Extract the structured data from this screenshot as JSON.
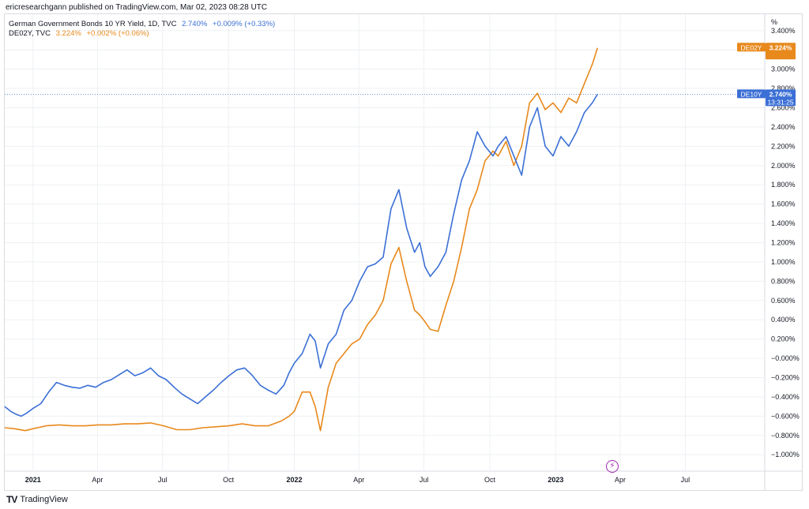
{
  "header": {
    "published": "ericresearchgann published on TradingView.com, Mar 02, 2023 08:28 UTC"
  },
  "legend": {
    "line1": {
      "name": "German Government Bonds 10 YR Yield, 1D, TVC",
      "value": "2.740%",
      "change": "+0.009% (+0.33%)"
    },
    "line2": {
      "name": "DE02Y, TVC",
      "value": "3.224%",
      "change": "+0.002% (+0.06%)"
    }
  },
  "axis_unit": "%",
  "labels": {
    "de02y": {
      "ticker": "DE02Y",
      "value": "3.224%"
    },
    "de10y": {
      "ticker": "DE10Y",
      "value": "2.740%",
      "countdown": "13:31:25"
    }
  },
  "footer": {
    "logo": "TV",
    "brand": "TradingView"
  },
  "colors": {
    "de10y": "#3b6fd6",
    "de02y": "#e8891c",
    "grid": "#eef0f3",
    "text": "#131722"
  },
  "chart_data": {
    "type": "line",
    "title": "German Government Bonds 10 YR Yield vs DE02Y",
    "xlabel": "",
    "ylabel": "%",
    "ylim": [
      -1.17,
      3.57
    ],
    "xlim": [
      2020.892,
      2023.8
    ],
    "grid": true,
    "x_ticks": [
      {
        "label": "2021",
        "x": 2021.0,
        "bold": true
      },
      {
        "label": "Apr",
        "x": 2021.247
      },
      {
        "label": "Jul",
        "x": 2021.496
      },
      {
        "label": "Oct",
        "x": 2021.748
      },
      {
        "label": "2022",
        "x": 2022.0,
        "bold": true
      },
      {
        "label": "Apr",
        "x": 2022.247
      },
      {
        "label": "Jul",
        "x": 2022.496
      },
      {
        "label": "Oct",
        "x": 2022.748
      },
      {
        "label": "2023",
        "x": 2023.0,
        "bold": true
      },
      {
        "label": "Apr",
        "x": 2023.247
      },
      {
        "label": "Jul",
        "x": 2023.496
      }
    ],
    "y_ticks": [
      {
        "value": 3.4,
        "label": "3.400%"
      },
      {
        "value": 3.2,
        "label": "3.200%"
      },
      {
        "value": 3.0,
        "label": "3.000%"
      },
      {
        "value": 2.8,
        "label": "2.800%"
      },
      {
        "value": 2.6,
        "label": "2.600%"
      },
      {
        "value": 2.4,
        "label": "2.400%"
      },
      {
        "value": 2.2,
        "label": "2.200%"
      },
      {
        "value": 2.0,
        "label": "2.000%"
      },
      {
        "value": 1.8,
        "label": "1.800%"
      },
      {
        "value": 1.6,
        "label": "1.600%"
      },
      {
        "value": 1.4,
        "label": "1.400%"
      },
      {
        "value": 1.2,
        "label": "1.200%"
      },
      {
        "value": 1.0,
        "label": "1.000%"
      },
      {
        "value": 0.8,
        "label": "0.800%"
      },
      {
        "value": 0.6,
        "label": "0.600%"
      },
      {
        "value": 0.4,
        "label": "0.400%"
      },
      {
        "value": 0.2,
        "label": "0.200%"
      },
      {
        "value": 0.0,
        "label": "−0.000%"
      },
      {
        "value": -0.2,
        "label": "−0.200%"
      },
      {
        "value": -0.4,
        "label": "−0.400%"
      },
      {
        "value": -0.6,
        "label": "−0.600%"
      },
      {
        "value": -0.8,
        "label": "−0.800%"
      },
      {
        "value": -1.0,
        "label": "−1.000%"
      }
    ],
    "series": [
      {
        "name": "German Government Bonds 10 YR Yield (DE10Y)",
        "color": "#3b6fd6",
        "x": [
          2020.892,
          2020.915,
          2020.935,
          2020.955,
          2020.975,
          2021.0,
          2021.03,
          2021.06,
          2021.09,
          2021.12,
          2021.15,
          2021.18,
          2021.21,
          2021.24,
          2021.27,
          2021.3,
          2021.33,
          2021.36,
          2021.39,
          2021.42,
          2021.45,
          2021.48,
          2021.51,
          2021.54,
          2021.57,
          2021.6,
          2021.63,
          2021.66,
          2021.69,
          2021.72,
          2021.75,
          2021.78,
          2021.81,
          2021.84,
          2021.87,
          2021.9,
          2021.93,
          2021.96,
          2021.98,
          2022.0,
          2022.03,
          2022.06,
          2022.08,
          2022.1,
          2022.13,
          2022.16,
          2022.19,
          2022.22,
          2022.25,
          2022.28,
          2022.31,
          2022.34,
          2022.37,
          2022.4,
          2022.43,
          2022.46,
          2022.48,
          2022.5,
          2022.52,
          2022.55,
          2022.58,
          2022.61,
          2022.64,
          2022.67,
          2022.7,
          2022.73,
          2022.76,
          2022.78,
          2022.81,
          2022.84,
          2022.87,
          2022.9,
          2022.93,
          2022.96,
          2022.99,
          2023.02,
          2023.05,
          2023.08,
          2023.11,
          2023.14,
          2023.16
        ],
        "values": [
          -0.5,
          -0.55,
          -0.58,
          -0.6,
          -0.57,
          -0.52,
          -0.47,
          -0.35,
          -0.25,
          -0.28,
          -0.3,
          -0.31,
          -0.28,
          -0.3,
          -0.25,
          -0.22,
          -0.17,
          -0.12,
          -0.18,
          -0.15,
          -0.1,
          -0.18,
          -0.22,
          -0.3,
          -0.37,
          -0.42,
          -0.47,
          -0.4,
          -0.33,
          -0.25,
          -0.18,
          -0.12,
          -0.1,
          -0.18,
          -0.28,
          -0.33,
          -0.37,
          -0.28,
          -0.15,
          -0.05,
          0.05,
          0.25,
          0.18,
          -0.1,
          0.15,
          0.25,
          0.5,
          0.6,
          0.8,
          0.95,
          0.98,
          1.05,
          1.55,
          1.75,
          1.35,
          1.1,
          1.2,
          0.95,
          0.85,
          0.95,
          1.1,
          1.5,
          1.85,
          2.05,
          2.35,
          2.2,
          2.1,
          2.2,
          2.3,
          2.1,
          1.9,
          2.4,
          2.6,
          2.2,
          2.1,
          2.3,
          2.2,
          2.35,
          2.55,
          2.65,
          2.74
        ]
      },
      {
        "name": "DE02Y",
        "color": "#e8891c",
        "x": [
          2020.892,
          2020.93,
          2020.97,
          2021.0,
          2021.05,
          2021.1,
          2021.15,
          2021.2,
          2021.25,
          2021.3,
          2021.35,
          2021.4,
          2021.45,
          2021.5,
          2021.55,
          2021.6,
          2021.65,
          2021.7,
          2021.75,
          2021.8,
          2021.85,
          2021.9,
          2021.95,
          2021.98,
          2022.0,
          2022.03,
          2022.06,
          2022.08,
          2022.1,
          2022.13,
          2022.16,
          2022.19,
          2022.22,
          2022.25,
          2022.28,
          2022.31,
          2022.34,
          2022.37,
          2022.4,
          2022.43,
          2022.46,
          2022.48,
          2022.5,
          2022.52,
          2022.55,
          2022.58,
          2022.61,
          2022.64,
          2022.67,
          2022.7,
          2022.73,
          2022.76,
          2022.78,
          2022.81,
          2022.84,
          2022.87,
          2022.9,
          2022.93,
          2022.96,
          2022.99,
          2023.02,
          2023.05,
          2023.08,
          2023.11,
          2023.14,
          2023.16
        ],
        "values": [
          -0.72,
          -0.73,
          -0.75,
          -0.73,
          -0.7,
          -0.69,
          -0.7,
          -0.7,
          -0.69,
          -0.69,
          -0.68,
          -0.68,
          -0.67,
          -0.7,
          -0.74,
          -0.74,
          -0.72,
          -0.71,
          -0.7,
          -0.68,
          -0.7,
          -0.7,
          -0.65,
          -0.6,
          -0.55,
          -0.35,
          -0.35,
          -0.5,
          -0.75,
          -0.3,
          -0.05,
          0.05,
          0.15,
          0.2,
          0.35,
          0.45,
          0.6,
          0.98,
          1.15,
          0.8,
          0.5,
          0.45,
          0.38,
          0.3,
          0.28,
          0.55,
          0.8,
          1.15,
          1.55,
          1.75,
          2.05,
          2.15,
          2.1,
          2.25,
          2.0,
          2.2,
          2.65,
          2.75,
          2.58,
          2.65,
          2.55,
          2.7,
          2.65,
          2.85,
          3.05,
          3.22
        ]
      }
    ],
    "current_price_line": {
      "value": 2.74
    }
  }
}
